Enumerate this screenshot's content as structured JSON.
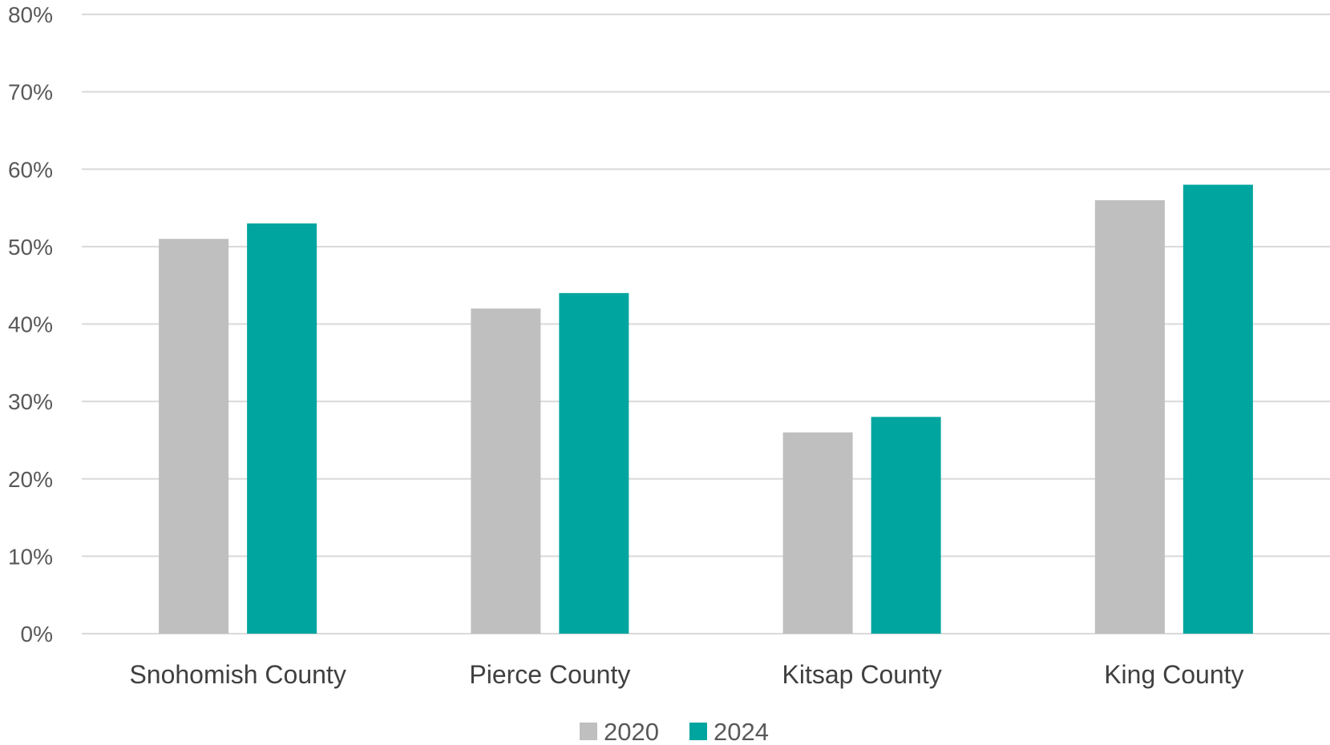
{
  "chart_data": {
    "type": "bar",
    "title": "",
    "xlabel": "",
    "ylabel": "",
    "categories": [
      "Snohomish County",
      "Pierce County",
      "Kitsap County",
      "King County"
    ],
    "series": [
      {
        "name": "2020",
        "color": "#bfbfbf",
        "values": [
          51,
          42,
          26,
          56
        ]
      },
      {
        "name": "2024",
        "color": "#00a59f",
        "values": [
          53,
          44,
          28,
          58
        ]
      }
    ],
    "ylim": [
      0,
      80
    ],
    "y_ticks": [
      0,
      10,
      20,
      30,
      40,
      50,
      60,
      70,
      80
    ],
    "y_tick_labels": [
      "0%",
      "10%",
      "20%",
      "30%",
      "40%",
      "50%",
      "60%",
      "70%",
      "80%"
    ],
    "grid": true,
    "legend_position": "bottom-center"
  }
}
